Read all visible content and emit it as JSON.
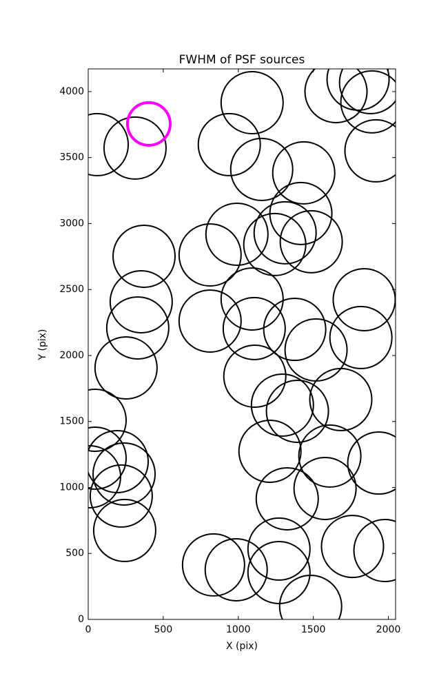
{
  "chart_data": {
    "type": "scatter",
    "title": "FWHM of PSF sources",
    "x_label": "X (pix)",
    "y_label": "Y (pix)",
    "xlim": [
      0,
      2048
    ],
    "ylim": [
      0,
      4172
    ],
    "xticks": [
      0,
      500,
      1000,
      1500,
      2000
    ],
    "yticks": [
      0,
      500,
      1000,
      1500,
      2000,
      2500,
      3000,
      3500,
      4000
    ],
    "series": [
      {
        "color": "#000000",
        "x": [
          60,
          312,
          1092,
          940,
          1156,
          1436,
          1651,
          1798,
          1890,
          1881,
          1917,
          372,
          812,
          991,
          1243,
          1312,
          1417,
          1486,
          353,
          330,
          252,
          812,
          1092,
          1106,
          1376,
          1518,
          1839,
          1817,
          1110,
          1294,
          1394,
          1683,
          1211,
          1610,
          1936,
          1578,
          1326,
          46,
          46,
          193,
          239,
          9,
          220,
          243,
          835,
          986,
          1271,
          1271,
          1482,
          1761,
          1977
        ],
        "values": [
          3598,
          3572,
          3916,
          3598,
          3410,
          3384,
          4000,
          4094,
          3922,
          4068,
          3551,
          2752,
          2762,
          2919,
          2841,
          2930,
          3076,
          2862,
          2407,
          2209,
          1906,
          2261,
          2428,
          2204,
          2198,
          2042,
          2423,
          2136,
          1843,
          1624,
          1577,
          1666,
          1274,
          1238,
          1185,
          992,
          914,
          1509,
          1222,
          1196,
          1102,
          1081,
          935,
          674,
          413,
          376,
          533,
          355,
          99,
          553,
          522
        ]
      },
      {
        "color": "#ff00ff",
        "x": [
          404
        ],
        "values": [
          3755
        ]
      }
    ]
  }
}
